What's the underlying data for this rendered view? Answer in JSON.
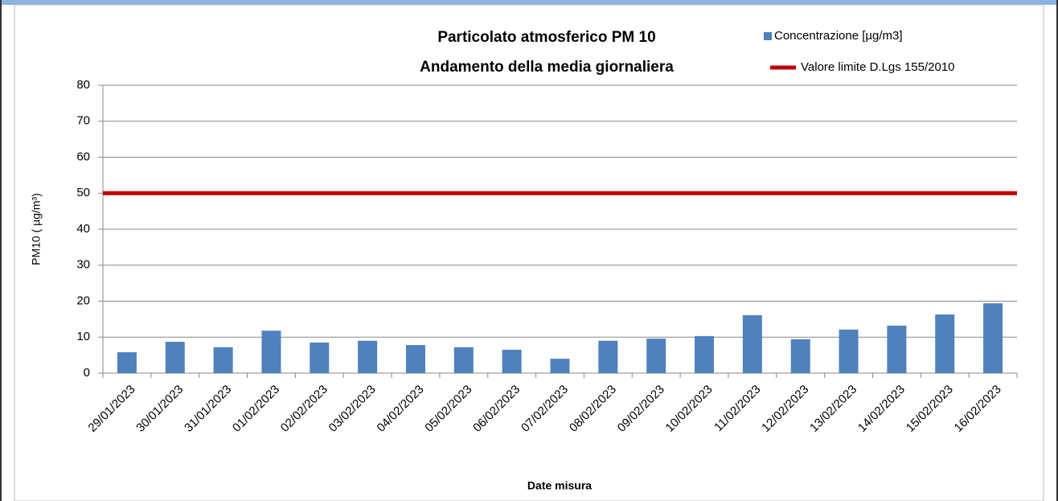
{
  "chart_data": {
    "type": "bar",
    "title": "Particolato atmosferico PM 10",
    "subtitle": "Andamento della media giornaliera",
    "x_label": "Date misura",
    "y_label": "PM10 ( µg/m³)",
    "categories": [
      "29/01/2023",
      "30/01/2023",
      "31/01/2023",
      "01/02/2023",
      "02/02/2023",
      "03/02/2023",
      "04/02/2023",
      "05/02/2023",
      "06/02/2023",
      "07/02/2023",
      "08/02/2023",
      "09/02/2023",
      "10/02/2023",
      "11/02/2023",
      "12/02/2023",
      "13/02/2023",
      "14/02/2023",
      "15/02/2023",
      "16/02/2023"
    ],
    "series": [
      {
        "name": "Concentrazione [µg/m3]",
        "color": "#4f81bd",
        "type": "bar",
        "values": [
          5.8,
          8.7,
          7.2,
          11.8,
          8.5,
          9.0,
          7.8,
          7.2,
          6.5,
          4.0,
          9.0,
          9.6,
          10.3,
          16.1,
          9.4,
          12.1,
          13.2,
          16.3,
          19.4
        ]
      },
      {
        "name": "Valore limite D.Lgs 155/2010",
        "color": "#c00000",
        "type": "line",
        "values": [
          50,
          50,
          50,
          50,
          50,
          50,
          50,
          50,
          50,
          50,
          50,
          50,
          50,
          50,
          50,
          50,
          50,
          50,
          50
        ]
      }
    ],
    "ylim": [
      0,
      80
    ],
    "yticks": [
      0,
      10,
      20,
      30,
      40,
      50,
      60,
      70,
      80
    ],
    "grid": true
  }
}
